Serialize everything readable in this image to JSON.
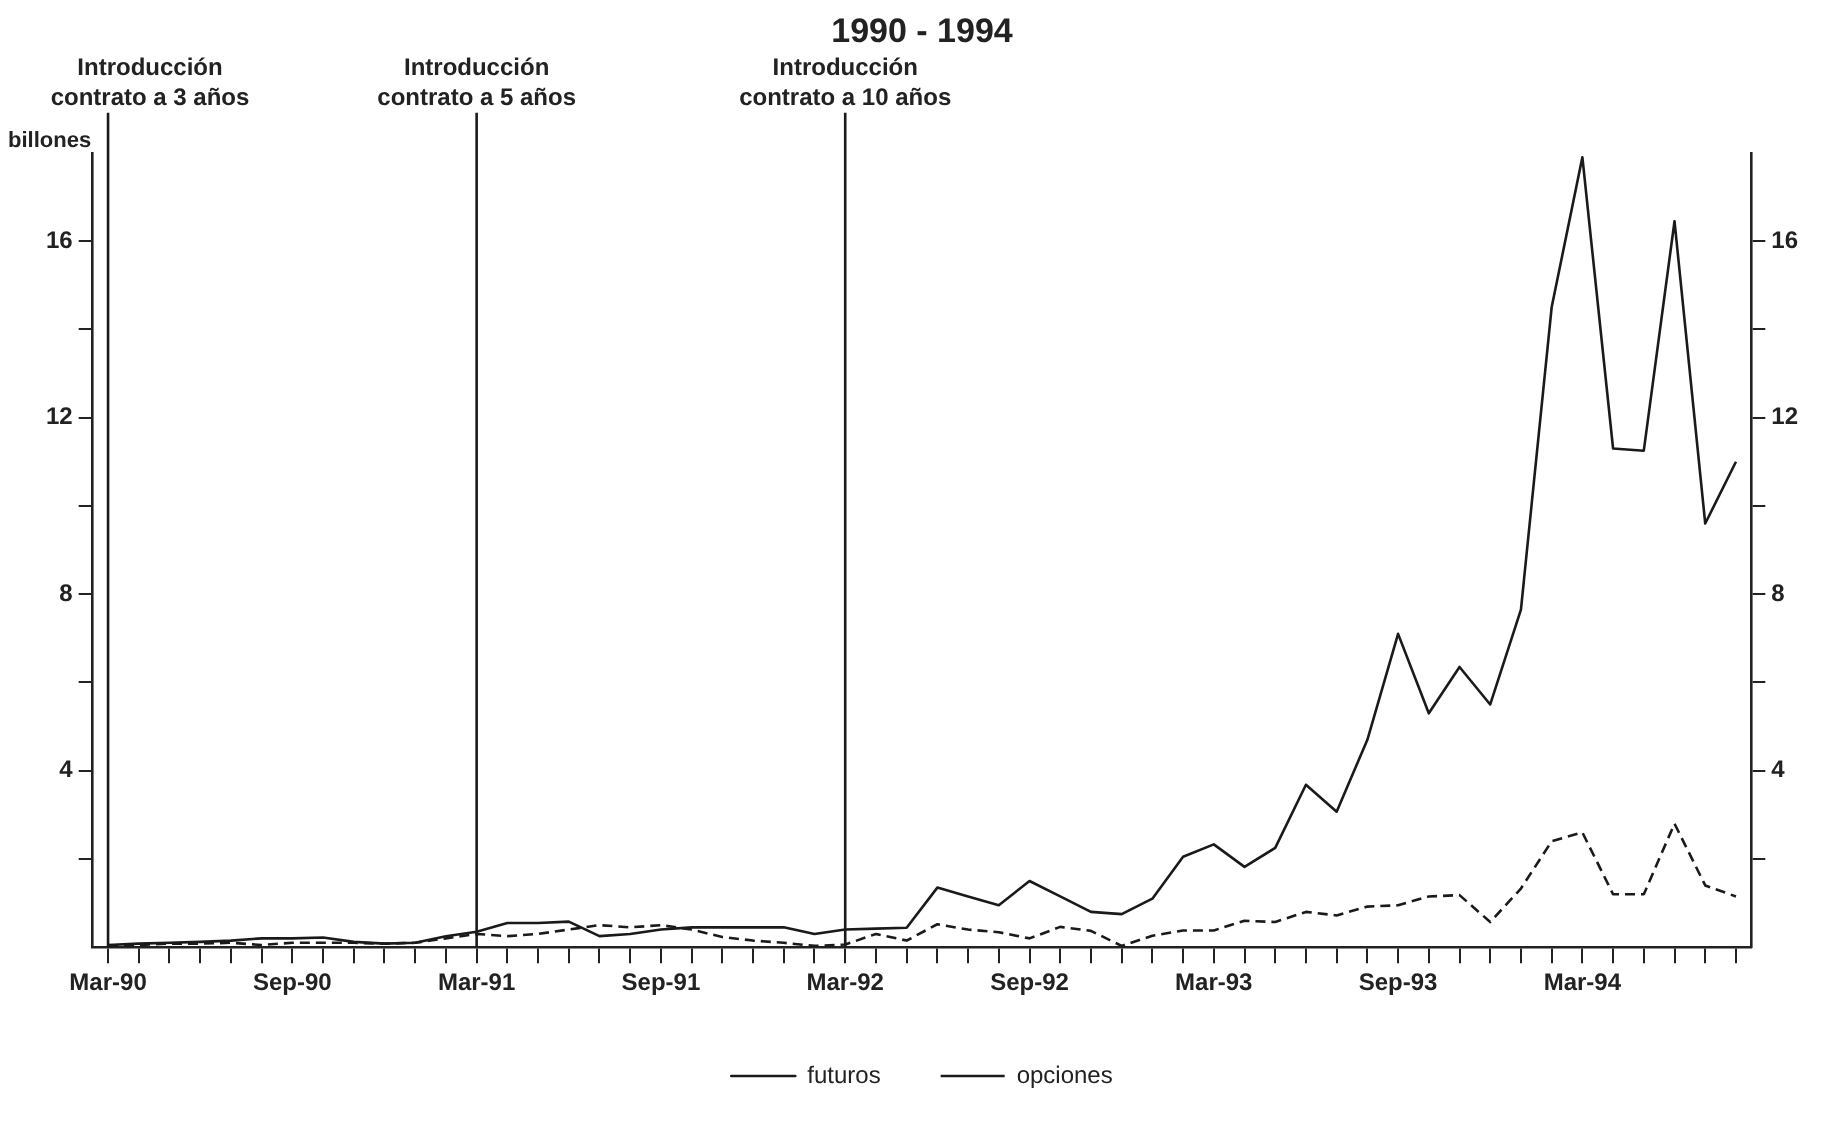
{
  "chart_data": {
    "type": "line",
    "title": "1990 - 1994",
    "ylabel": "billones",
    "categories": [
      "Mar-90",
      null,
      null,
      null,
      null,
      null,
      "Sep-90",
      null,
      null,
      null,
      null,
      null,
      "Mar-91",
      null,
      null,
      null,
      null,
      null,
      "Sep-91",
      null,
      null,
      null,
      null,
      null,
      "Mar-92",
      null,
      null,
      null,
      null,
      null,
      "Sep-92",
      null,
      null,
      null,
      null,
      null,
      "Mar-93",
      null,
      null,
      null,
      null,
      null,
      "Sep-93",
      null,
      null,
      null,
      null,
      null,
      "Mar-94",
      null,
      null,
      null,
      null,
      null
    ],
    "series": [
      {
        "name": "futuros",
        "color": "#1a1a1a",
        "line_style": "solid",
        "values": [
          0.05,
          0.08,
          0.1,
          0.12,
          0.15,
          0.2,
          0.2,
          0.22,
          0.12,
          0.08,
          0.1,
          0.25,
          0.35,
          0.55,
          0.55,
          0.58,
          0.25,
          0.3,
          0.4,
          0.45,
          0.45,
          0.45,
          0.45,
          0.3,
          0.4,
          0.42,
          0.44,
          1.35,
          1.15,
          0.95,
          1.5,
          1.15,
          0.8,
          0.75,
          1.1,
          2.05,
          2.33,
          1.82,
          2.25,
          3.68,
          3.07,
          4.7,
          7.1,
          5.3,
          6.35,
          5.5,
          7.65,
          14.5,
          17.9,
          11.3,
          11.25,
          16.45,
          9.6,
          11
        ]
      },
      {
        "name": "opciones",
        "color": "#1a1a1a",
        "line_style": "dashed",
        "values": [
          0.03,
          0.05,
          0.08,
          0.08,
          0.1,
          0.05,
          0.1,
          0.1,
          0.1,
          0.08,
          0.1,
          0.2,
          0.3,
          0.25,
          0.3,
          0.4,
          0.5,
          0.45,
          0.5,
          0.4,
          0.23,
          0.15,
          0.1,
          0.03,
          0.06,
          0.3,
          0.15,
          0.52,
          0.4,
          0.34,
          0.2,
          0.46,
          0.37,
          0.03,
          0.26,
          0.38,
          0.38,
          0.6,
          0.57,
          0.8,
          0.72,
          0.92,
          0.95,
          1.15,
          1.18,
          0.57,
          1.33,
          2.4,
          2.6,
          1.2,
          1.2,
          2.8,
          1.4,
          1.15
        ]
      }
    ],
    "ylim": [
      0,
      18
    ],
    "yticks": [
      {
        "value": 2,
        "label": null
      },
      4,
      {
        "value": 6,
        "label": null
      },
      8,
      {
        "value": 10,
        "label": null
      },
      12,
      {
        "value": 14,
        "label": null
      },
      16
    ],
    "y2lim": [
      0,
      18
    ],
    "y2ticks": [
      {
        "value": 2,
        "label": null
      },
      4,
      {
        "value": 6,
        "label": null
      },
      8,
      {
        "value": 10,
        "label": null
      },
      12,
      {
        "value": 14,
        "label": null
      },
      16
    ],
    "ref_lines": [
      {
        "axis": "x",
        "value": "Mar-90",
        "label": "Introducción\ncontrato a 3 años",
        "color": "#1a1a1a"
      },
      {
        "axis": "x",
        "value": "Mar-91",
        "label": "Introducción\ncontrato a 5 años",
        "color": "#1a1a1a"
      },
      {
        "axis": "x",
        "value": "Mar-92",
        "label": "Introducción\ncontrato a 10 años",
        "color": "#1a1a1a"
      }
    ],
    "grid": false,
    "legend": "bottom",
    "marker": "none"
  }
}
